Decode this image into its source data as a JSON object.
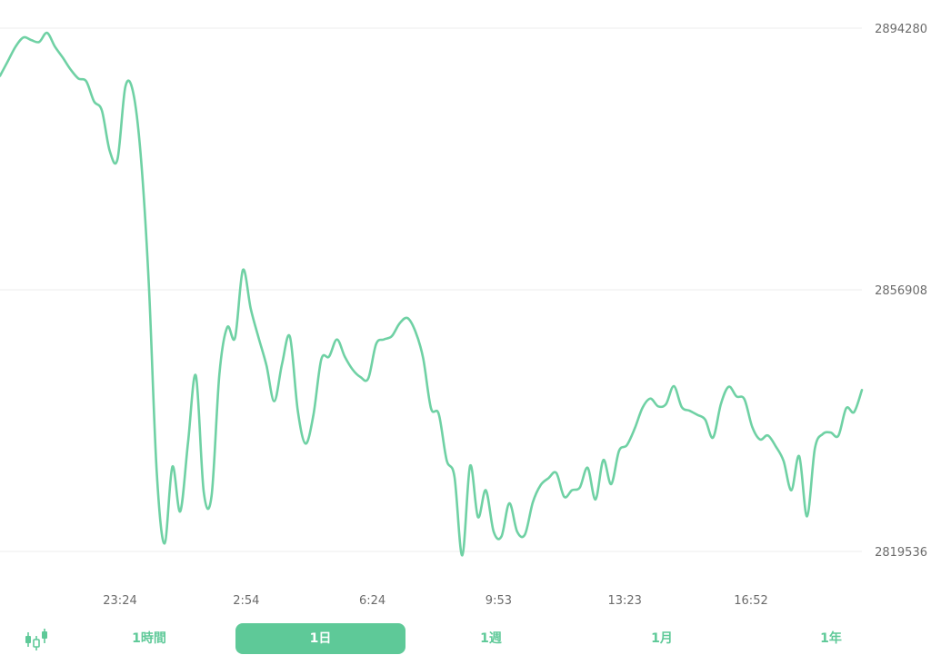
{
  "colors": {
    "line": "#6fd1a4",
    "accent": "#5ec998",
    "grid": "#eeeeee",
    "tick_text": "#6b6b6b"
  },
  "chart_data": {
    "type": "line",
    "title": "",
    "xlabel": "",
    "ylabel": "",
    "grid": true,
    "ylim": [
      2819536,
      2894280
    ],
    "y_ticks": [
      "2894280",
      "2856908",
      "2819536"
    ],
    "y_tick_values": [
      2894280,
      2856908,
      2819536
    ],
    "x_tick_labels": [
      "23:24",
      "2:54",
      "6:24",
      "9:53",
      "13:23",
      "16:52"
    ],
    "series": [
      {
        "name": "",
        "values": [
          2887470,
          2889560,
          2891660,
          2892960,
          2892570,
          2892310,
          2893610,
          2891660,
          2890090,
          2888390,
          2887090,
          2886700,
          2883820,
          2882520,
          2876760,
          2875580,
          2885910,
          2885070,
          2875580,
          2857550,
          2830950,
          2820670,
          2831650,
          2825250,
          2835130,
          2844640,
          2828060,
          2827460,
          2844850,
          2851550,
          2850070,
          2859740,
          2854210,
          2850070,
          2846140,
          2841000,
          2846340,
          2850210,
          2839680,
          2834940,
          2839030,
          2846960,
          2847370,
          2849820,
          2847370,
          2845520,
          2844450,
          2844240,
          2849150,
          2849820,
          2850280,
          2852110,
          2852880,
          2851000,
          2847170,
          2840010,
          2839150,
          2832590,
          2830220,
          2818980,
          2831770,
          2824440,
          2828280,
          2822370,
          2821670,
          2826420,
          2822370,
          2821970,
          2826550,
          2829010,
          2830000,
          2830750,
          2827350,
          2828280,
          2828670,
          2831480,
          2826960,
          2832590,
          2829150,
          2833890,
          2834710,
          2837080,
          2840050,
          2841370,
          2840260,
          2840580,
          2843150,
          2840170,
          2839640,
          2839050,
          2838370,
          2835790,
          2840580,
          2843060,
          2841680,
          2841290,
          2837330,
          2835530,
          2836110,
          2834550,
          2832470,
          2828280,
          2833140,
          2824550,
          2834250,
          2836300,
          2836530,
          2836070,
          2840000,
          2839440,
          2842590
        ]
      }
    ]
  },
  "range_bar": {
    "candle_icon": "candlestick-icon",
    "tabs": [
      {
        "label": "1時間",
        "active": false
      },
      {
        "label": "1日",
        "active": true
      },
      {
        "label": "1週",
        "active": false
      },
      {
        "label": "1月",
        "active": false
      },
      {
        "label": "1年",
        "active": false
      }
    ]
  }
}
